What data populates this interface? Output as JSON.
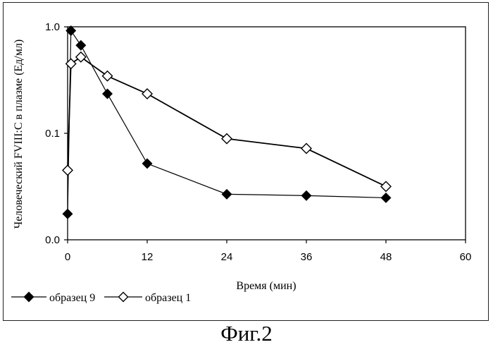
{
  "chart_data": {
    "type": "line",
    "xlabel": "Время (мин)",
    "ylabel": "Человеческий FVIII:C в плазме (Ед/мл)",
    "x_ticks": [
      0,
      12,
      24,
      36,
      48,
      60
    ],
    "y_ticks": [
      0.01,
      0.1,
      1.0
    ],
    "y_tick_labels": [
      "0.0",
      "0.1",
      "1.0"
    ],
    "xlim": [
      0,
      60
    ],
    "ylim": [
      0.01,
      1.0
    ],
    "y_scale": "log",
    "grid": false,
    "legend_position": "bottom-left",
    "series": [
      {
        "name": "образец 9",
        "marker": "filled-diamond",
        "color": "#000000",
        "x": [
          0,
          0.5,
          2,
          6,
          12,
          24,
          36,
          48
        ],
        "y": [
          0.0175,
          0.92,
          0.67,
          0.235,
          0.052,
          0.0268,
          0.026,
          0.0248
        ]
      },
      {
        "name": "образец 1",
        "marker": "open-diamond",
        "color": "#000000",
        "x": [
          0,
          0.5,
          2,
          6,
          12,
          24,
          36,
          48
        ],
        "y": [
          0.045,
          0.45,
          0.52,
          0.345,
          0.235,
          0.089,
          0.072,
          0.0317
        ]
      }
    ]
  },
  "caption": "Фиг.2"
}
